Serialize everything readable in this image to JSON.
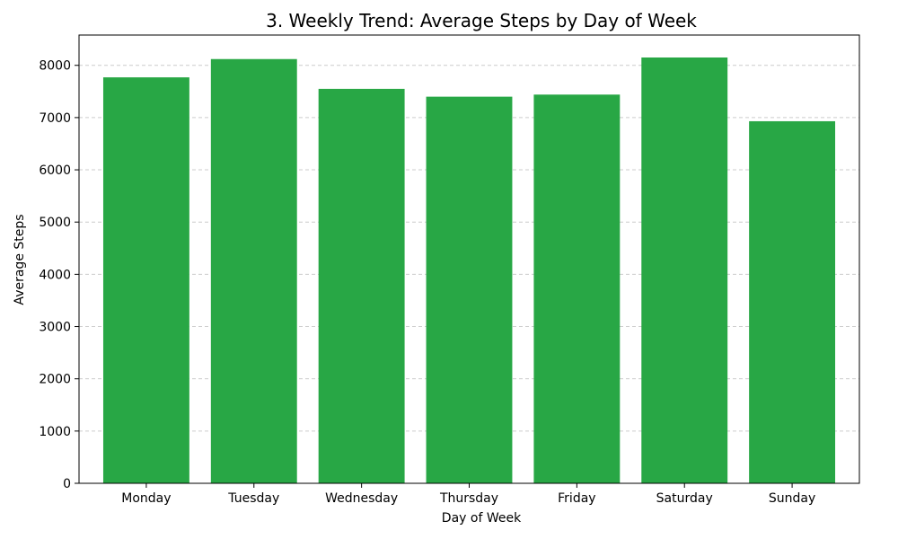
{
  "chart_data": {
    "type": "bar",
    "title": "3. Weekly Trend: Average Steps by Day of Week",
    "xlabel": "Day of Week",
    "ylabel": "Average Steps",
    "categories": [
      "Monday",
      "Tuesday",
      "Wednesday",
      "Thursday",
      "Friday",
      "Saturday",
      "Sunday"
    ],
    "values": [
      7770,
      8120,
      7550,
      7400,
      7440,
      8150,
      6930
    ],
    "ylim": [
      0,
      8580
    ],
    "yticks": [
      0,
      1000,
      2000,
      3000,
      4000,
      5000,
      6000,
      7000,
      8000
    ],
    "grid": "y-dashed",
    "bar_color": "#28a745",
    "grid_color": "#cccccc"
  }
}
